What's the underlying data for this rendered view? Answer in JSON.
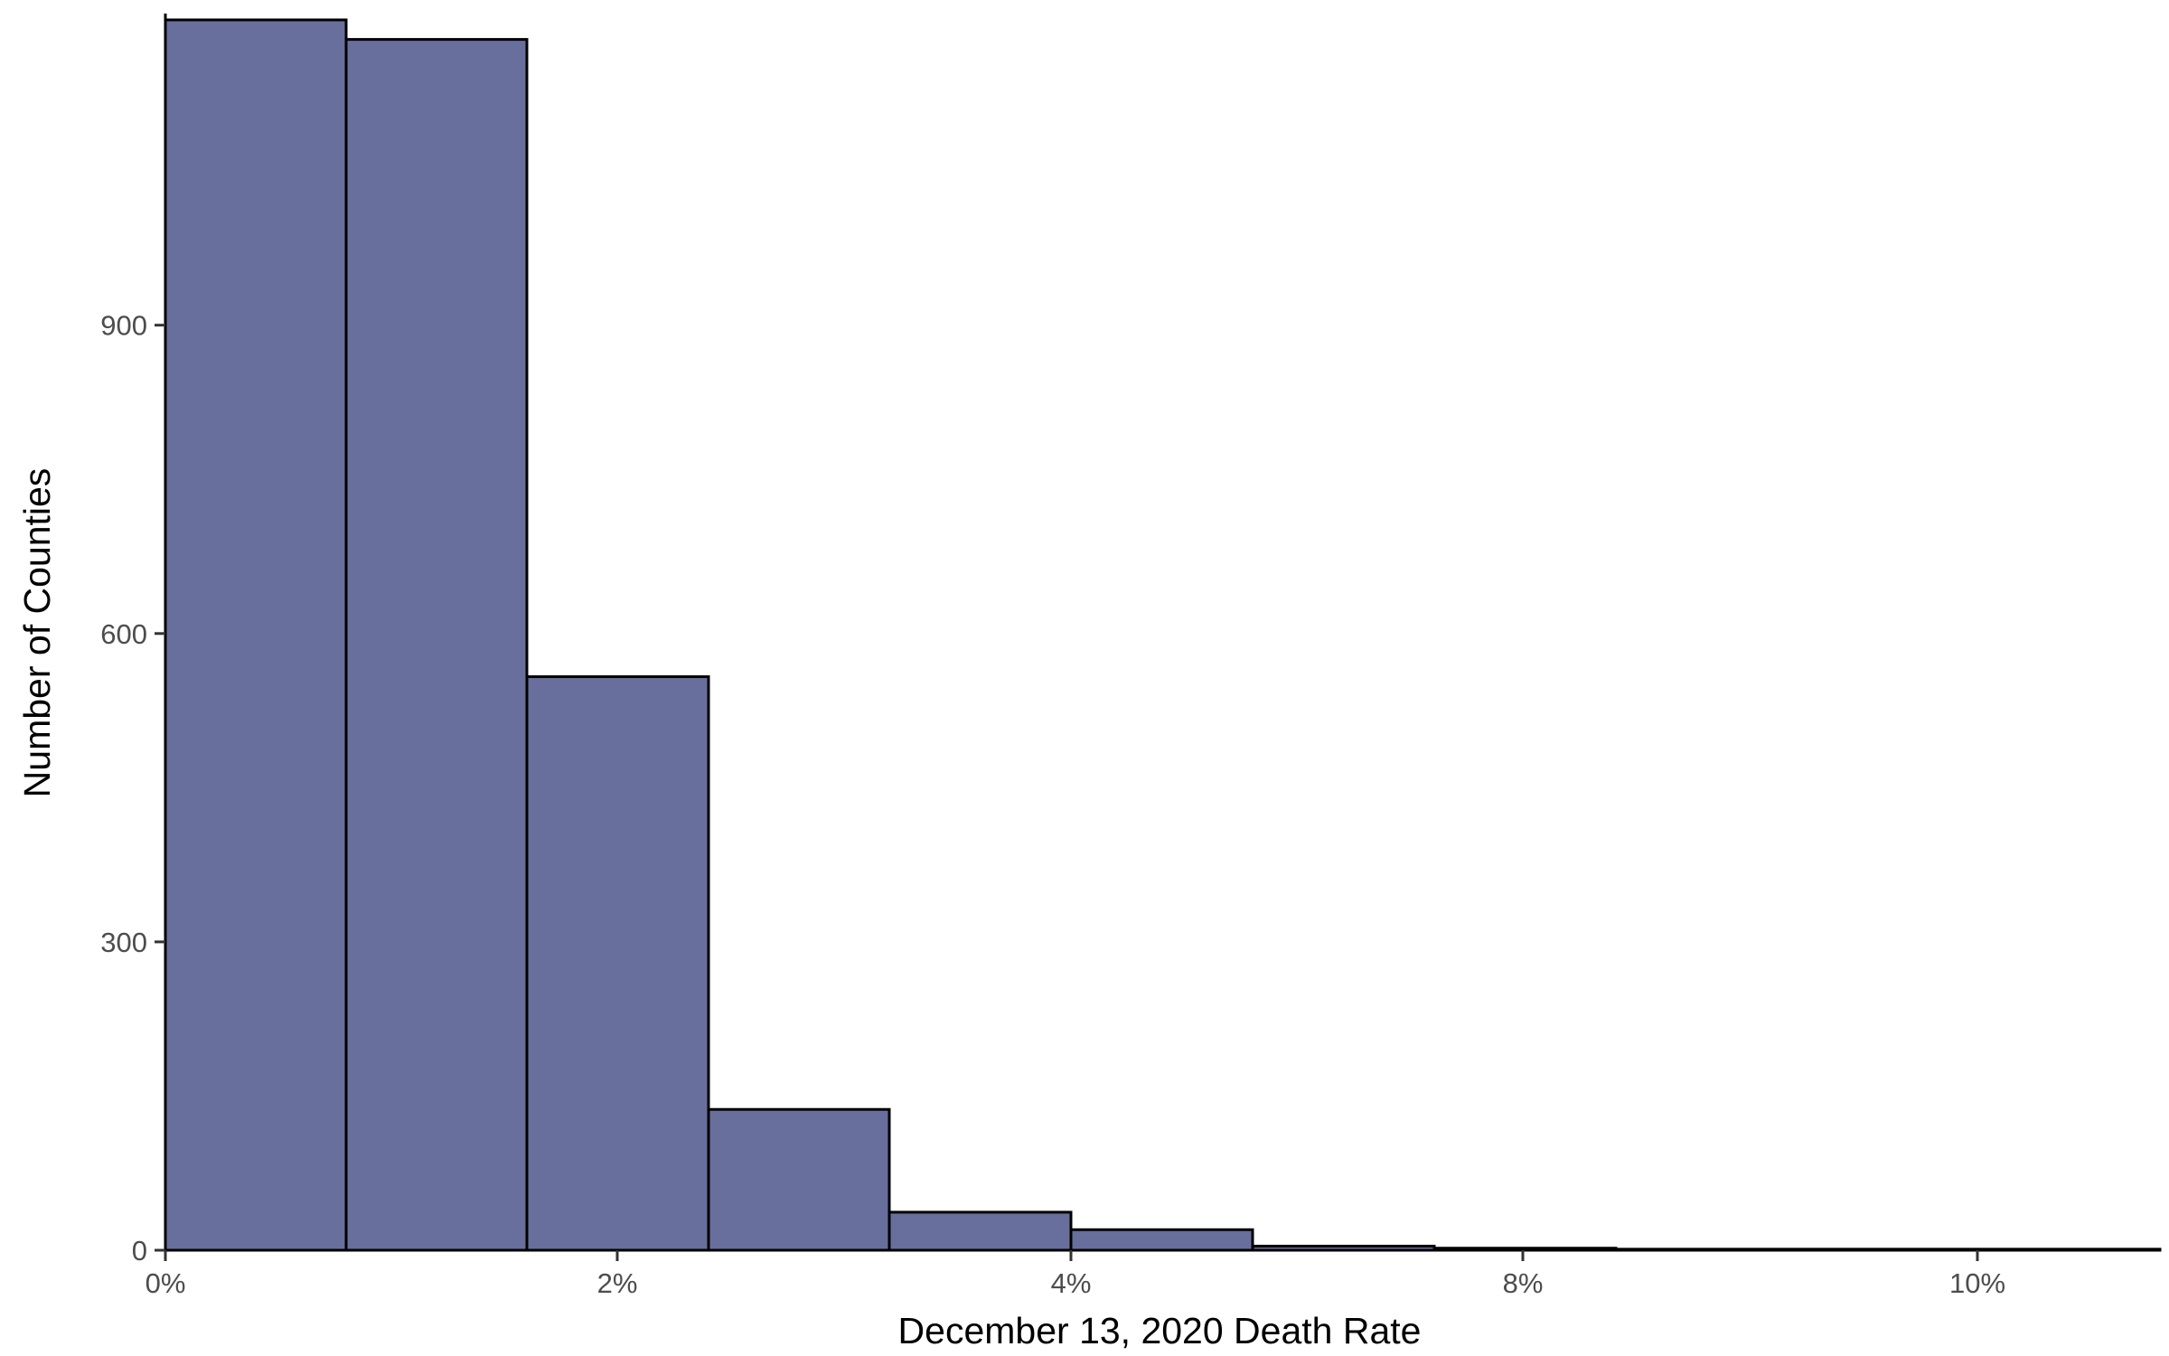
{
  "chart_data": {
    "type": "bar",
    "subtype": "histogram",
    "xlabel": "December 13, 2020 Death Rate",
    "ylabel": "Number of Counties",
    "bins": [
      {
        "start": "0%",
        "end": "0.8%",
        "count": 1197
      },
      {
        "start": "0.8%",
        "end": "1.6%",
        "count": 1178
      },
      {
        "start": "1.6%",
        "end": "2.4%",
        "count": 558
      },
      {
        "start": "2.4%",
        "end": "3.2%",
        "count": 137
      },
      {
        "start": "3.2%",
        "end": "4%",
        "count": 37
      },
      {
        "start": "4%",
        "end": "4.8%",
        "count": 20
      },
      {
        "start": "4.8%",
        "end": "5.6% (axis break toward 8%)",
        "count": 4
      },
      {
        "start": "~7.5%",
        "end": "~8.7%",
        "count": 2
      },
      {
        "start": "~8.7%",
        "end": "~11%",
        "count": 1
      }
    ],
    "x_ticks": [
      "0%",
      "2%",
      "4%",
      "8%",
      "10%"
    ],
    "y_ticks": [
      0,
      300,
      600,
      900
    ],
    "ylim": [
      0,
      1197
    ],
    "colors": {
      "bar_fill": "#686f9c",
      "bar_stroke": "#000000",
      "axis": "#333333",
      "tick_text": "#4d4d4d"
    },
    "grid": false,
    "legend": "none"
  }
}
